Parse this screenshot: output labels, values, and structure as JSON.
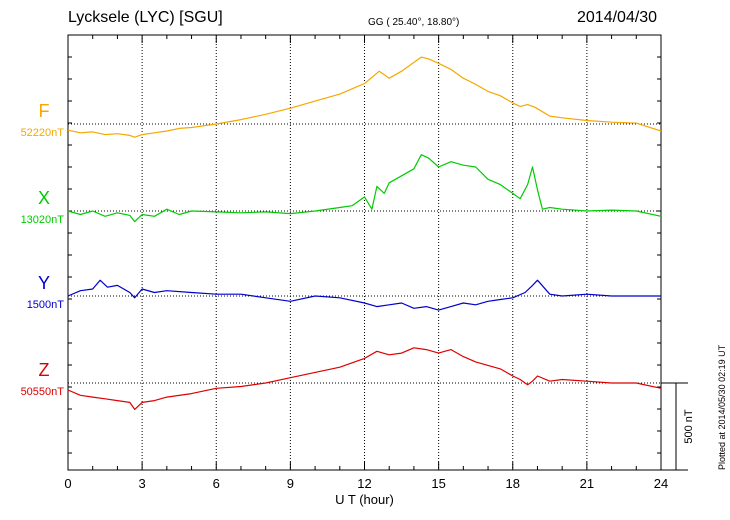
{
  "header": {
    "station": "Lycksele (LYC)  [SGU]",
    "coordinates": "GG ( 25.40°,  18.80°)",
    "date": "2014/04/30"
  },
  "footer_note": "Plotted at 2014/05/30 02:19 UT",
  "colors": {
    "F": "#f5a800",
    "X": "#00cc00",
    "Y": "#0000cc",
    "Z": "#dd0000"
  },
  "chart_data": {
    "type": "line",
    "title": "Lycksele (LYC)  [SGU]",
    "xlabel": "U T (hour)",
    "x_ticks": [
      "0",
      "3",
      "6",
      "9",
      "12",
      "15",
      "18",
      "21",
      "24"
    ],
    "xlim": [
      0,
      24
    ],
    "scale_bar": "500 nT",
    "grid": true,
    "series": [
      {
        "name": "F",
        "baseline_label": "52220nT",
        "color": "#f5a800",
        "x": [
          0,
          0.5,
          1,
          1.5,
          2,
          2.5,
          2.7,
          3,
          3.5,
          4,
          4.5,
          5,
          6,
          7,
          8,
          9,
          10,
          11,
          11.5,
          12,
          12.3,
          12.6,
          13,
          13.5,
          14,
          14.3,
          14.6,
          15,
          15.5,
          16,
          16.5,
          17,
          17.5,
          18,
          18.3,
          18.6,
          18.9,
          19.2,
          19.5,
          20,
          21,
          22,
          23,
          24
        ],
        "y": [
          -35,
          -50,
          -45,
          -60,
          -55,
          -65,
          -75,
          -60,
          -50,
          -40,
          -25,
          -20,
          0,
          25,
          55,
          90,
          130,
          170,
          200,
          230,
          265,
          300,
          260,
          300,
          350,
          380,
          370,
          345,
          310,
          260,
          225,
          185,
          160,
          120,
          100,
          110,
          95,
          70,
          45,
          35,
          20,
          10,
          5,
          -40
        ]
      },
      {
        "name": "X",
        "baseline_label": "13020nT",
        "color": "#00cc00",
        "x": [
          0,
          0.5,
          1,
          1.5,
          2,
          2.5,
          2.7,
          3,
          3.5,
          4,
          4.5,
          5,
          6,
          7,
          8,
          9,
          10,
          11,
          11.5,
          12,
          12.3,
          12.5,
          12.8,
          13,
          13.5,
          14,
          14.3,
          14.6,
          15,
          15.5,
          16,
          16.5,
          17,
          17.5,
          18,
          18.3,
          18.6,
          18.8,
          19,
          19.2,
          19.5,
          20,
          21,
          22,
          23,
          24
        ],
        "y": [
          0,
          -20,
          0,
          -30,
          -10,
          -25,
          -60,
          -20,
          -30,
          10,
          -20,
          0,
          -5,
          -10,
          -5,
          -15,
          0,
          20,
          30,
          80,
          10,
          140,
          100,
          160,
          200,
          240,
          320,
          300,
          250,
          280,
          260,
          250,
          180,
          150,
          100,
          70,
          150,
          250,
          120,
          10,
          20,
          10,
          0,
          5,
          0,
          -30
        ]
      },
      {
        "name": "Y",
        "baseline_label": "1500nT",
        "color": "#0000cc",
        "x": [
          0,
          0.5,
          1,
          1.3,
          1.6,
          2,
          2.5,
          2.7,
          3,
          3.5,
          4,
          5,
          6,
          7,
          8,
          9,
          10,
          11,
          12,
          12.5,
          13,
          13.5,
          14,
          14.5,
          15,
          15.5,
          16,
          16.5,
          17,
          17.5,
          18,
          18.5,
          18.8,
          19,
          19.5,
          20,
          21,
          22,
          23,
          24
        ],
        "y": [
          0,
          30,
          40,
          90,
          50,
          60,
          20,
          -10,
          40,
          20,
          30,
          20,
          10,
          10,
          -10,
          -30,
          0,
          -10,
          -40,
          -60,
          -50,
          -40,
          -70,
          -60,
          -80,
          -60,
          -40,
          -50,
          -30,
          -20,
          -10,
          20,
          60,
          90,
          10,
          0,
          10,
          0,
          0,
          0
        ]
      },
      {
        "name": "Z",
        "baseline_label": "50550nT",
        "color": "#dd0000",
        "x": [
          0,
          0.5,
          1,
          1.5,
          2,
          2.5,
          2.7,
          3,
          3.5,
          4,
          5,
          6,
          7,
          8,
          9,
          10,
          11,
          12,
          12.5,
          13,
          13.5,
          14,
          14.5,
          15,
          15.5,
          16,
          16.5,
          17,
          17.5,
          18,
          18.3,
          18.6,
          18.8,
          19,
          19.5,
          20,
          21,
          22,
          23,
          24
        ],
        "y": [
          -40,
          -70,
          -80,
          -90,
          -100,
          -110,
          -150,
          -110,
          -100,
          -80,
          -60,
          -30,
          -20,
          0,
          30,
          60,
          90,
          140,
          180,
          160,
          170,
          200,
          190,
          170,
          190,
          150,
          120,
          100,
          80,
          40,
          20,
          -10,
          10,
          40,
          10,
          20,
          10,
          0,
          0,
          -30
        ]
      }
    ]
  }
}
